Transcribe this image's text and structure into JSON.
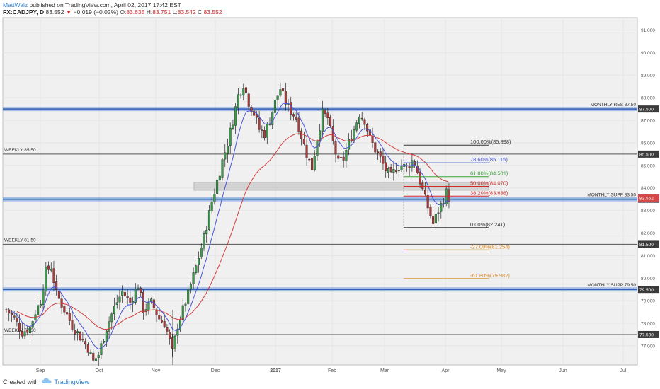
{
  "header": {
    "author": "MattWalz",
    "published": "published on TradingView.com, April 02, 2017 17:42 EST",
    "symbol": "FX:CADJPY, D",
    "last": "83.552",
    "change": "−0.019 (−0.02%)",
    "o_label": "O:",
    "o": "83.635",
    "h_label": "H:",
    "h": "83.751",
    "l_label": "L:",
    "l": "83.542",
    "c_label": "C:",
    "c": "83.552"
  },
  "footer": {
    "created_with": "Created with",
    "brand": "TradingView"
  },
  "colors": {
    "up": "#3e9e4e",
    "down": "#b23a3a",
    "ma_fast": "#4a56d8",
    "ma_slow": "#d23c3c",
    "level_band": "#4a7fd4",
    "fib_blue": "#4a56d8",
    "fib_green": "#3aa23a",
    "fib_red": "#d02a2a",
    "fib_orange": "#e08a1e",
    "grid": "#e4e4e4",
    "bg": "#f0f0f0"
  },
  "chart_data": {
    "type": "candlestick",
    "ylim": [
      76.15,
      91.55
    ],
    "y_ticks": [
      "77.000",
      "78.000",
      "79.000",
      "80.000",
      "81.000",
      "82.000",
      "83.000",
      "84.000",
      "85.000",
      "86.000",
      "87.000",
      "88.000",
      "89.000",
      "90.000",
      "91.000"
    ],
    "x_ticks": [
      "Sep",
      "Oct",
      "Nov",
      "Dec",
      "2017",
      "Feb",
      "Mar",
      "Apr",
      "May",
      "Jun",
      "Jul"
    ],
    "horizontal_levels": [
      {
        "label": "MONTHLY RES 87.50",
        "price_tag": "87.500",
        "value": 87.5,
        "style": "band",
        "label_side": "right"
      },
      {
        "label": "WEEKLY 85.50",
        "price_tag": "85.500",
        "value": 85.5,
        "style": "line",
        "label_side": "left"
      },
      {
        "label": "MONTHLY SUPP 83.50",
        "price_tag": "83.500",
        "value": 83.5,
        "style": "band",
        "label_side": "right"
      },
      {
        "label": "WEEKLY 81.50",
        "price_tag": "81.500",
        "value": 81.5,
        "style": "line",
        "label_side": "left"
      },
      {
        "label": "MONTHLY SUPP 79.50",
        "price_tag": "79.500",
        "value": 79.5,
        "style": "band",
        "label_side": "right"
      },
      {
        "label": "WEEKLY 77.50",
        "price_tag": "77.500",
        "value": 77.5,
        "style": "line",
        "label_side": "left"
      }
    ],
    "last_price_tag": "83.552",
    "last_price": 83.552,
    "fibonacci": [
      {
        "label": "100.00%(85.898)",
        "value": 85.898,
        "color": "#333333"
      },
      {
        "label": "78.60%(85.115)",
        "value": 85.115,
        "color": "#4a56d8"
      },
      {
        "label": "61.80%(84.501)",
        "value": 84.501,
        "color": "#3aa23a"
      },
      {
        "label": "50.00%(84.070)",
        "value": 84.07,
        "color": "#d02a2a"
      },
      {
        "label": "38.20%(83.638)",
        "value": 83.638,
        "color": "#d02a2a"
      },
      {
        "label": "0.00%(82.241)",
        "value": 82.241,
        "color": "#333333"
      },
      {
        "label": "-27.00%(81.254)",
        "value": 81.254,
        "color": "#e08a1e"
      },
      {
        "label": "-61.80%(79.982)",
        "value": 79.982,
        "color": "#e08a1e"
      }
    ],
    "zone": {
      "low": 83.9,
      "high": 84.25
    },
    "anchors": [
      [
        0,
        78.6
      ],
      [
        3,
        78.2
      ],
      [
        6,
        77.6
      ],
      [
        9,
        77.8
      ],
      [
        11,
        78.5
      ],
      [
        13,
        79.0
      ],
      [
        15,
        80.3
      ],
      [
        17,
        80.5
      ],
      [
        19,
        79.3
      ],
      [
        22,
        78.6
      ],
      [
        25,
        77.9
      ],
      [
        28,
        77.4
      ],
      [
        31,
        76.9
      ],
      [
        33,
        76.3
      ],
      [
        35,
        76.6
      ],
      [
        38,
        77.8
      ],
      [
        41,
        78.7
      ],
      [
        44,
        79.4
      ],
      [
        47,
        78.9
      ],
      [
        50,
        79.7
      ],
      [
        52,
        78.6
      ],
      [
        55,
        78.9
      ],
      [
        58,
        78.2
      ],
      [
        60,
        78.0
      ],
      [
        62,
        77.2
      ],
      [
        63,
        76.7
      ],
      [
        65,
        77.9
      ],
      [
        67,
        78.6
      ],
      [
        69,
        79.3
      ],
      [
        72,
        80.5
      ],
      [
        75,
        81.8
      ],
      [
        78,
        83.4
      ],
      [
        80,
        84.3
      ],
      [
        82,
        85.2
      ],
      [
        84,
        86.0
      ],
      [
        86,
        87.0
      ],
      [
        88,
        88.1
      ],
      [
        90,
        88.6
      ],
      [
        92,
        87.8
      ],
      [
        94,
        87.3
      ],
      [
        96,
        86.6
      ],
      [
        98,
        86.4
      ],
      [
        100,
        87.0
      ],
      [
        102,
        87.8
      ],
      [
        104,
        88.4
      ],
      [
        106,
        87.8
      ],
      [
        108,
        87.4
      ],
      [
        110,
        87.1
      ],
      [
        112,
        86.3
      ],
      [
        114,
        85.5
      ],
      [
        116,
        84.9
      ],
      [
        118,
        86.2
      ],
      [
        120,
        87.3
      ],
      [
        122,
        87.1
      ],
      [
        124,
        86.0
      ],
      [
        126,
        85.1
      ],
      [
        128,
        85.3
      ],
      [
        130,
        86.0
      ],
      [
        132,
        86.6
      ],
      [
        134,
        87.3
      ],
      [
        136,
        87.0
      ],
      [
        138,
        86.2
      ],
      [
        140,
        85.7
      ],
      [
        142,
        85.3
      ],
      [
        144,
        84.8
      ],
      [
        146,
        84.5
      ],
      [
        148,
        84.9
      ],
      [
        150,
        85.0
      ],
      [
        152,
        84.9
      ],
      [
        154,
        85.2
      ],
      [
        155,
        85.1
      ],
      [
        157,
        84.3
      ],
      [
        159,
        83.5
      ],
      [
        161,
        82.8
      ],
      [
        162,
        82.4
      ],
      [
        164,
        83.0
      ],
      [
        166,
        83.5
      ],
      [
        167,
        83.8
      ],
      [
        168,
        83.55
      ]
    ]
  }
}
